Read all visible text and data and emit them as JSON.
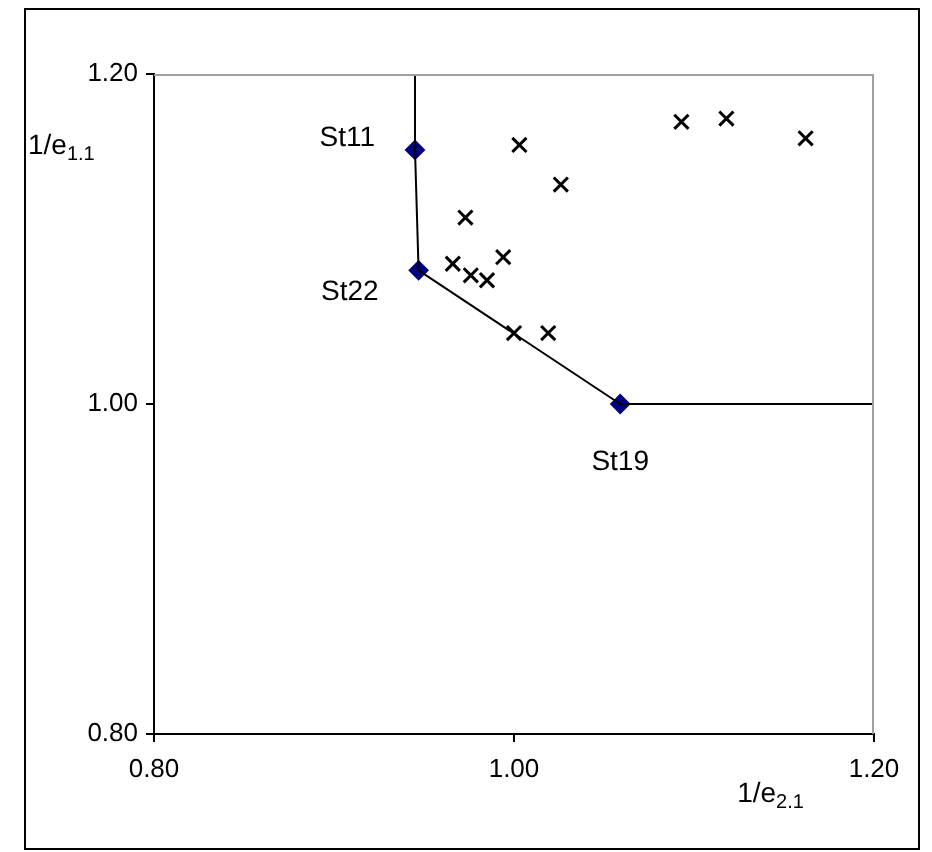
{
  "chart_data": {
    "type": "scatter",
    "xlabel": "1/e$_{2.1}$",
    "ylabel": "1/e$_{1.1}$",
    "xlim": [
      0.8,
      1.2
    ],
    "xticks": [
      {
        "value": 0.8,
        "label": "0.80"
      },
      {
        "value": 1.0,
        "label": "1.00"
      },
      {
        "value": 1.2,
        "label": "1.20"
      }
    ],
    "ylim": [
      0.8,
      1.2
    ],
    "yticks": [
      {
        "value": 0.8,
        "label": "0.80"
      },
      {
        "value": 1.0,
        "label": "1.00"
      },
      {
        "value": 1.2,
        "label": "1.20"
      }
    ],
    "grid": false,
    "legend": false,
    "series": [
      {
        "type": "line",
        "color": "#000000",
        "marker": "none",
        "line_style": "solid",
        "x": [
          0.945,
          0.945,
          0.947,
          1.059,
          1.2
        ],
        "values": [
          1.2,
          1.154,
          1.081,
          1.0,
          1.0
        ]
      },
      {
        "type": "scatter",
        "color": "#000080",
        "marker": "diamond",
        "x": [
          0.945,
          0.947,
          1.059
        ],
        "values": [
          1.154,
          1.081,
          1.0
        ]
      },
      {
        "type": "scatter",
        "color": "#000000",
        "marker": "cross",
        "x": [
          1.003,
          1.026,
          0.973,
          1.093,
          1.118,
          1.162,
          0.966,
          0.976,
          0.985,
          0.994,
          1.0,
          1.019
        ],
        "values": [
          1.157,
          1.133,
          1.113,
          1.171,
          1.173,
          1.161,
          1.085,
          1.078,
          1.075,
          1.089,
          1.043,
          1.043
        ]
      }
    ],
    "annotations": [
      {
        "text": "St11",
        "x": 0.945,
        "y": 1.154
      },
      {
        "text": "St22",
        "x": 0.947,
        "y": 1.081
      },
      {
        "text": "St19",
        "x": 1.059,
        "y": 1.0
      }
    ]
  }
}
